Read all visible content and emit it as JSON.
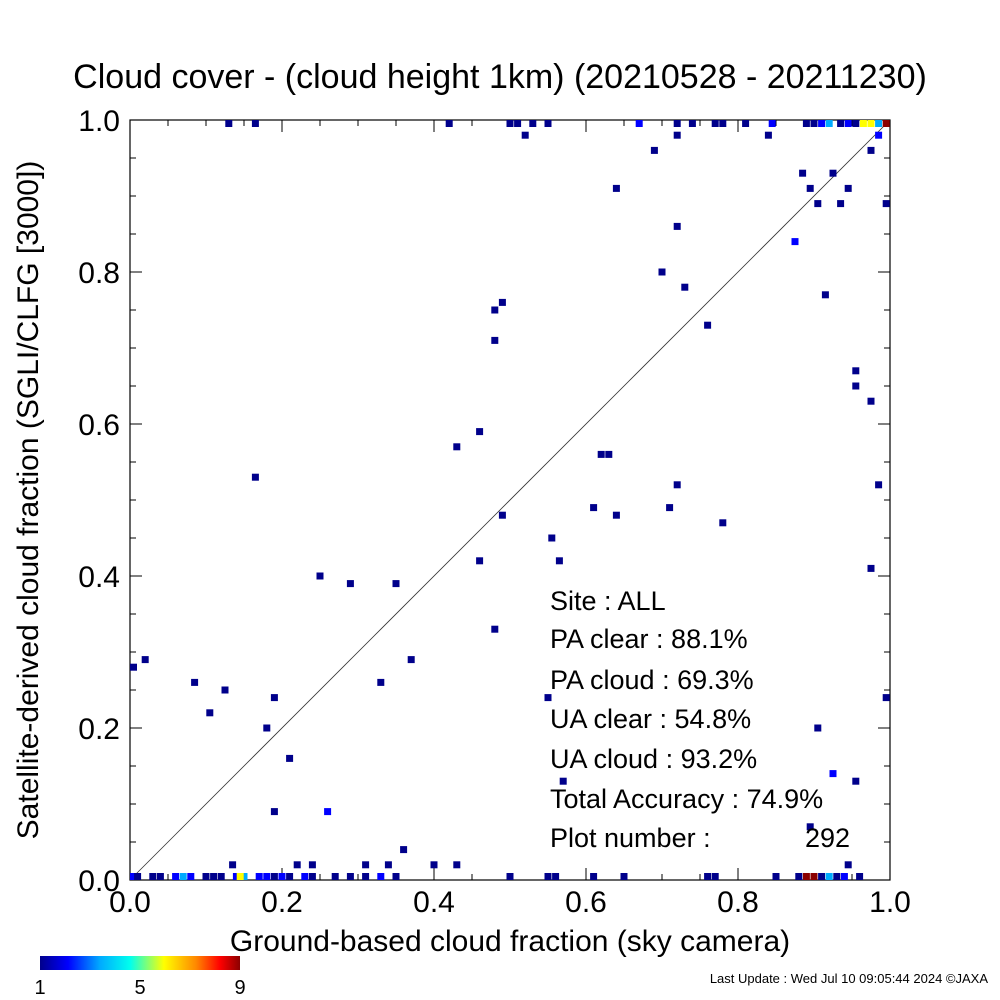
{
  "chart_data": {
    "type": "scatter",
    "title": "Cloud cover - (cloud height 1km)  (20210528 - 20211230)",
    "xlabel": "Ground-based cloud fraction (sky camera)",
    "ylabel": "Satellite-derived cloud fraction (SGLI/CLFG [3000])",
    "xlim": [
      0,
      1
    ],
    "ylim": [
      0,
      1
    ],
    "x_ticks": [
      "0.0",
      "0.2",
      "0.4",
      "0.6",
      "0.8",
      "1.0"
    ],
    "y_ticks": [
      "0.0",
      "0.2",
      "0.4",
      "0.6",
      "0.8",
      "1.0"
    ],
    "grid": false,
    "diagonal_line": true,
    "color_scale": {
      "min_label": "1",
      "mid_label": "5",
      "max_label": "9",
      "colors": [
        "#00008b",
        "#0000ff",
        "#00aaff",
        "#00ffee",
        "#ffff00",
        "#ff8800",
        "#ff0000",
        "#8b0000"
      ]
    },
    "points": [
      {
        "x": 0.0,
        "y": 0.28,
        "c": 1
      },
      {
        "x": 0.02,
        "y": 0.29,
        "c": 1
      },
      {
        "x": 0.085,
        "y": 0.26,
        "c": 1
      },
      {
        "x": 0.105,
        "y": 0.22,
        "c": 1
      },
      {
        "x": 0.125,
        "y": 0.25,
        "c": 1
      },
      {
        "x": 0.135,
        "y": 0.02,
        "c": 1
      },
      {
        "x": 0.165,
        "y": 0.53,
        "c": 1
      },
      {
        "x": 0.18,
        "y": 0.2,
        "c": 1
      },
      {
        "x": 0.19,
        "y": 0.24,
        "c": 1
      },
      {
        "x": 0.19,
        "y": 0.09,
        "c": 1
      },
      {
        "x": 0.21,
        "y": 0.16,
        "c": 1
      },
      {
        "x": 0.22,
        "y": 0.02,
        "c": 1
      },
      {
        "x": 0.24,
        "y": 0.02,
        "c": 1
      },
      {
        "x": 0.25,
        "y": 0.4,
        "c": 1
      },
      {
        "x": 0.26,
        "y": 0.09,
        "c": 2
      },
      {
        "x": 0.29,
        "y": 0.39,
        "c": 1
      },
      {
        "x": 0.31,
        "y": 0.02,
        "c": 1
      },
      {
        "x": 0.33,
        "y": 0.26,
        "c": 1
      },
      {
        "x": 0.34,
        "y": 0.02,
        "c": 1
      },
      {
        "x": 0.35,
        "y": 0.39,
        "c": 1
      },
      {
        "x": 0.36,
        "y": 0.04,
        "c": 1
      },
      {
        "x": 0.37,
        "y": 0.29,
        "c": 1
      },
      {
        "x": 0.4,
        "y": 0.02,
        "c": 1
      },
      {
        "x": 0.43,
        "y": 0.57,
        "c": 1
      },
      {
        "x": 0.43,
        "y": 0.02,
        "c": 1
      },
      {
        "x": 0.46,
        "y": 0.59,
        "c": 1
      },
      {
        "x": 0.46,
        "y": 0.42,
        "c": 1
      },
      {
        "x": 0.48,
        "y": 0.75,
        "c": 1
      },
      {
        "x": 0.49,
        "y": 0.76,
        "c": 1
      },
      {
        "x": 0.48,
        "y": 0.71,
        "c": 1
      },
      {
        "x": 0.49,
        "y": 0.48,
        "c": 1
      },
      {
        "x": 0.48,
        "y": 0.33,
        "c": 1
      },
      {
        "x": 0.52,
        "y": 0.98,
        "c": 1
      },
      {
        "x": 0.55,
        "y": 0.24,
        "c": 1
      },
      {
        "x": 0.555,
        "y": 0.45,
        "c": 1
      },
      {
        "x": 0.565,
        "y": 0.42,
        "c": 1
      },
      {
        "x": 0.57,
        "y": 0.13,
        "c": 1
      },
      {
        "x": 0.61,
        "y": 0.49,
        "c": 1
      },
      {
        "x": 0.62,
        "y": 0.56,
        "c": 1
      },
      {
        "x": 0.63,
        "y": 0.56,
        "c": 1
      },
      {
        "x": 0.64,
        "y": 0.48,
        "c": 1
      },
      {
        "x": 0.64,
        "y": 0.91,
        "c": 1
      },
      {
        "x": 0.69,
        "y": 0.96,
        "c": 1
      },
      {
        "x": 0.7,
        "y": 0.8,
        "c": 1
      },
      {
        "x": 0.71,
        "y": 0.49,
        "c": 1
      },
      {
        "x": 0.72,
        "y": 0.86,
        "c": 1
      },
      {
        "x": 0.72,
        "y": 0.52,
        "c": 1
      },
      {
        "x": 0.72,
        "y": 0.98,
        "c": 1
      },
      {
        "x": 0.73,
        "y": 0.78,
        "c": 1
      },
      {
        "x": 0.76,
        "y": 0.73,
        "c": 1
      },
      {
        "x": 0.78,
        "y": 0.47,
        "c": 1
      },
      {
        "x": 0.84,
        "y": 0.98,
        "c": 1
      },
      {
        "x": 0.875,
        "y": 0.84,
        "c": 2
      },
      {
        "x": 0.885,
        "y": 0.93,
        "c": 1
      },
      {
        "x": 0.895,
        "y": 0.91,
        "c": 1
      },
      {
        "x": 0.895,
        "y": 0.07,
        "c": 1
      },
      {
        "x": 0.905,
        "y": 0.89,
        "c": 1
      },
      {
        "x": 0.905,
        "y": 0.2,
        "c": 1
      },
      {
        "x": 0.915,
        "y": 0.77,
        "c": 1
      },
      {
        "x": 0.925,
        "y": 0.93,
        "c": 1
      },
      {
        "x": 0.925,
        "y": 0.14,
        "c": 2
      },
      {
        "x": 0.935,
        "y": 0.89,
        "c": 1
      },
      {
        "x": 0.945,
        "y": 0.91,
        "c": 1
      },
      {
        "x": 0.945,
        "y": 0.02,
        "c": 1
      },
      {
        "x": 0.955,
        "y": 0.67,
        "c": 1
      },
      {
        "x": 0.955,
        "y": 0.65,
        "c": 1
      },
      {
        "x": 0.955,
        "y": 0.13,
        "c": 1
      },
      {
        "x": 0.975,
        "y": 0.63,
        "c": 1
      },
      {
        "x": 0.975,
        "y": 0.41,
        "c": 1
      },
      {
        "x": 0.975,
        "y": 0.96,
        "c": 1
      },
      {
        "x": 0.985,
        "y": 0.98,
        "c": 2
      },
      {
        "x": 0.985,
        "y": 0.52,
        "c": 1
      },
      {
        "x": 0.995,
        "y": 0.89,
        "c": 1
      },
      {
        "x": 0.995,
        "y": 0.24,
        "c": 1
      },
      {
        "x": 0.13,
        "y": 1.0,
        "c": 1
      },
      {
        "x": 0.165,
        "y": 1.0,
        "c": 1
      },
      {
        "x": 0.42,
        "y": 1.0,
        "c": 1
      },
      {
        "x": 0.5,
        "y": 1.0,
        "c": 1
      },
      {
        "x": 0.51,
        "y": 1.0,
        "c": 1
      },
      {
        "x": 0.53,
        "y": 1.0,
        "c": 1
      },
      {
        "x": 0.55,
        "y": 1.0,
        "c": 1
      },
      {
        "x": 0.67,
        "y": 1.0,
        "c": 2
      },
      {
        "x": 0.72,
        "y": 1.0,
        "c": 1
      },
      {
        "x": 0.74,
        "y": 1.0,
        "c": 1
      },
      {
        "x": 0.77,
        "y": 1.0,
        "c": 1
      },
      {
        "x": 0.78,
        "y": 1.0,
        "c": 1
      },
      {
        "x": 0.81,
        "y": 1.0,
        "c": 1
      },
      {
        "x": 0.845,
        "y": 1.0,
        "c": 2
      },
      {
        "x": 0.89,
        "y": 1.0,
        "c": 1
      },
      {
        "x": 0.9,
        "y": 1.0,
        "c": 1
      },
      {
        "x": 0.91,
        "y": 1.0,
        "c": 2
      },
      {
        "x": 0.92,
        "y": 1.0,
        "c": 3
      },
      {
        "x": 0.935,
        "y": 1.0,
        "c": 1
      },
      {
        "x": 0.945,
        "y": 1.0,
        "c": 2
      },
      {
        "x": 0.955,
        "y": 1.0,
        "c": 1
      },
      {
        "x": 0.965,
        "y": 1.0,
        "c": 5
      },
      {
        "x": 0.975,
        "y": 1.0,
        "c": 6
      },
      {
        "x": 0.985,
        "y": 1.0,
        "c": 3
      },
      {
        "x": 0.995,
        "y": 1.0,
        "c": 9
      },
      {
        "x": 0.0,
        "y": 0.0,
        "c": 2
      },
      {
        "x": 0.01,
        "y": 0.0,
        "c": 1
      },
      {
        "x": 0.03,
        "y": 0.0,
        "c": 1
      },
      {
        "x": 0.04,
        "y": 0.0,
        "c": 1
      },
      {
        "x": 0.06,
        "y": 0.0,
        "c": 2
      },
      {
        "x": 0.07,
        "y": 0.0,
        "c": 3
      },
      {
        "x": 0.08,
        "y": 0.0,
        "c": 2
      },
      {
        "x": 0.1,
        "y": 0.0,
        "c": 1
      },
      {
        "x": 0.11,
        "y": 0.0,
        "c": 1
      },
      {
        "x": 0.12,
        "y": 0.0,
        "c": 1
      },
      {
        "x": 0.14,
        "y": 0.0,
        "c": 2
      },
      {
        "x": 0.15,
        "y": 0.0,
        "c": 3
      },
      {
        "x": 0.145,
        "y": 0.0,
        "c": 5
      },
      {
        "x": 0.17,
        "y": 0.0,
        "c": 2
      },
      {
        "x": 0.18,
        "y": 0.0,
        "c": 2
      },
      {
        "x": 0.19,
        "y": 0.0,
        "c": 1
      },
      {
        "x": 0.2,
        "y": 0.0,
        "c": 2
      },
      {
        "x": 0.21,
        "y": 0.0,
        "c": 1
      },
      {
        "x": 0.23,
        "y": 0.0,
        "c": 2
      },
      {
        "x": 0.24,
        "y": 0.0,
        "c": 1
      },
      {
        "x": 0.27,
        "y": 0.0,
        "c": 1
      },
      {
        "x": 0.29,
        "y": 0.0,
        "c": 1
      },
      {
        "x": 0.31,
        "y": 0.0,
        "c": 1
      },
      {
        "x": 0.33,
        "y": 0.0,
        "c": 2
      },
      {
        "x": 0.35,
        "y": 0.0,
        "c": 1
      },
      {
        "x": 0.5,
        "y": 0.0,
        "c": 1
      },
      {
        "x": 0.55,
        "y": 0.0,
        "c": 1
      },
      {
        "x": 0.56,
        "y": 0.0,
        "c": 1
      },
      {
        "x": 0.61,
        "y": 0.0,
        "c": 1
      },
      {
        "x": 0.65,
        "y": 0.0,
        "c": 1
      },
      {
        "x": 0.76,
        "y": 0.0,
        "c": 1
      },
      {
        "x": 0.77,
        "y": 0.0,
        "c": 1
      },
      {
        "x": 0.85,
        "y": 0.0,
        "c": 1
      },
      {
        "x": 0.88,
        "y": 0.0,
        "c": 1
      },
      {
        "x": 0.89,
        "y": 0.0,
        "c": 9
      },
      {
        "x": 0.9,
        "y": 0.0,
        "c": 9
      },
      {
        "x": 0.91,
        "y": 0.0,
        "c": 1
      },
      {
        "x": 0.92,
        "y": 0.0,
        "c": 3
      },
      {
        "x": 0.93,
        "y": 0.0,
        "c": 1
      },
      {
        "x": 0.94,
        "y": 0.0,
        "c": 2
      },
      {
        "x": 0.96,
        "y": 0.0,
        "c": 1
      }
    ]
  },
  "stats": {
    "site": "Site : ALL",
    "pa_clear": "PA clear :  88.1%",
    "pa_cloud": "PA cloud :  69.3%",
    "ua_clear": "UA clear :  54.8%",
    "ua_cloud": "UA cloud :  93.2%",
    "total_accuracy": "Total Accuracy :  74.9%",
    "plot_number_label": "Plot number :",
    "plot_number_value": "292"
  },
  "footer": {
    "last_update": "Last Update : Wed Jul 10 09:05:44 2024  ©JAXA"
  }
}
